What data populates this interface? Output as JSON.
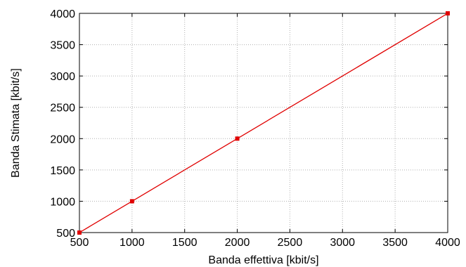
{
  "chart_data": {
    "type": "line",
    "title": "",
    "xlabel": "Banda effettiva [kbit/s]",
    "ylabel": "Banda Stimata [kbit/s]",
    "xlim": [
      500,
      4000
    ],
    "ylim": [
      500,
      4000
    ],
    "xticks": [
      500,
      1000,
      1500,
      2000,
      2500,
      3000,
      3500,
      4000
    ],
    "yticks": [
      500,
      1000,
      1500,
      2000,
      2500,
      3000,
      3500,
      4000
    ],
    "xtick_labels": [
      "500",
      "1000",
      "1500",
      "2000",
      "2500",
      "3000",
      "3500",
      "4000"
    ],
    "ytick_labels": [
      "500",
      "1000",
      "1500",
      "2000",
      "2500",
      "3000",
      "3500",
      "4000"
    ],
    "grid": true,
    "legend": "none",
    "colors": {
      "series": "#e00000",
      "axes": "#000000",
      "grid": "#b0b0b0"
    },
    "series": [
      {
        "x": [
          500,
          1000,
          2000,
          4000
        ],
        "y": [
          500,
          1000,
          2000,
          4000
        ],
        "marker": "square"
      }
    ]
  }
}
